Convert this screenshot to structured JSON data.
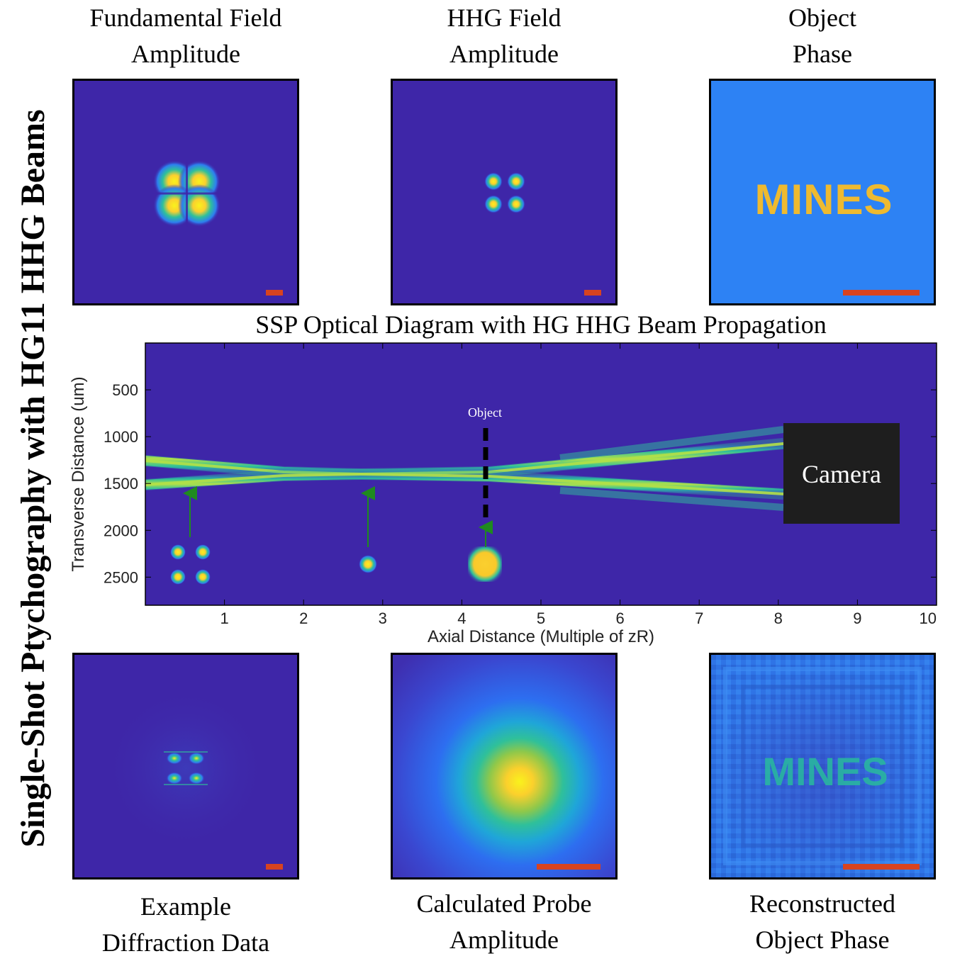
{
  "figure": {
    "vertical_title": "Single-Shot Ptychography with HG11 HHG Beams",
    "colors": {
      "background": "#3e26a8",
      "phase_background": "#2d82f4",
      "mines_gold": "#eeba30",
      "scale_bar": "#d8431f",
      "camera": "#1e1e1e",
      "arrow": "#1f8a1f"
    }
  },
  "panels": {
    "fundamental": {
      "title_line1": "Fundamental Field",
      "title_line2": "Amplitude"
    },
    "hhg": {
      "title_line1": "HHG Field",
      "title_line2": "Amplitude"
    },
    "object_phase": {
      "title_line1": "Object",
      "title_line2": "Phase",
      "logo_text": "MINES"
    },
    "diffraction": {
      "title_line1": "Example",
      "title_line2": "Diffraction Data"
    },
    "probe": {
      "title_line1": "Calculated Probe",
      "title_line2": "Amplitude"
    },
    "reconstructed": {
      "title_line1": "Reconstructed",
      "title_line2": "Object Phase",
      "logo_text": "MINES"
    }
  },
  "diagram": {
    "title": "SSP Optical Diagram with HG HHG Beam Propagation",
    "xlabel": "Axial Distance (Multiple of zR)",
    "ylabel": "Transverse Distance (um)",
    "x_ticks": [
      "1",
      "2",
      "3",
      "4",
      "5",
      "6",
      "7",
      "8",
      "9",
      "10"
    ],
    "y_ticks": [
      "500",
      "1000",
      "1500",
      "2000",
      "2500"
    ],
    "object_label": "Object",
    "camera_label": "Camera"
  }
}
